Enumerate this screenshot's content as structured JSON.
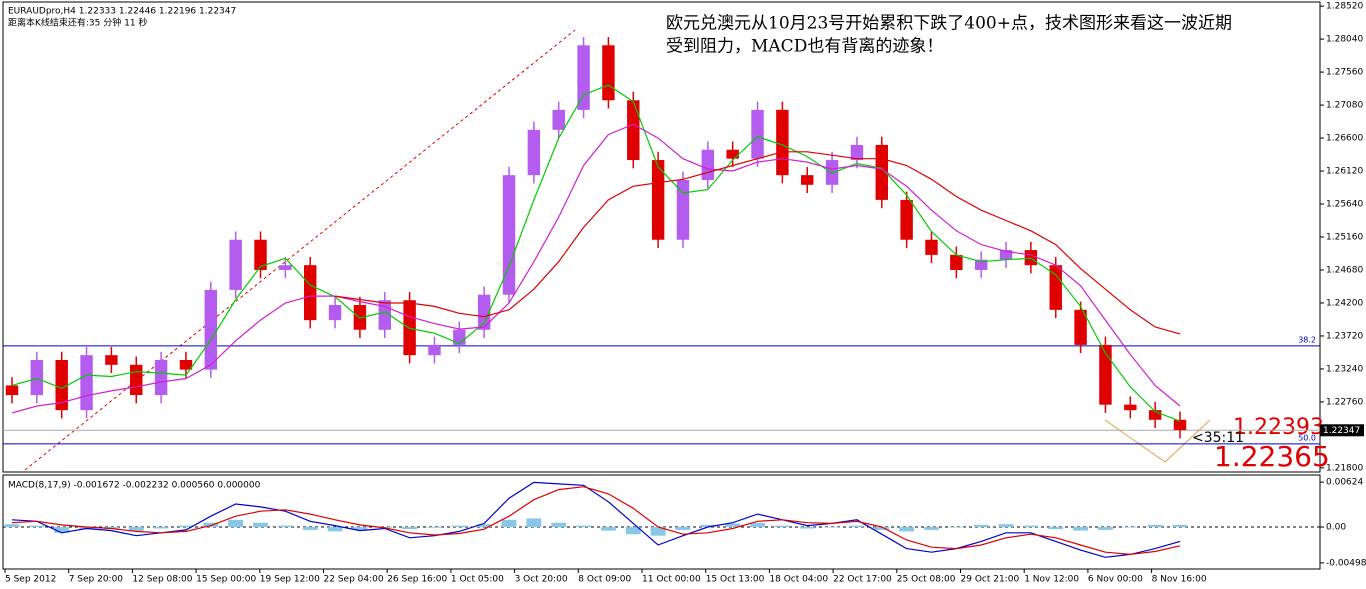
{
  "chart_data": [
    {
      "type": "candlestick",
      "header": "EURAUDpro,H4  1.22333 1.22446 1.22196 1.22347",
      "countdown": "距离本K线结束还有:35 分钟 11 秒",
      "annotation": [
        "欧元兑澳元从10月23号开始累积下跌了400+点，技术图形来看这一波近期",
        "受到阻力，MACD也有背离的迹象！"
      ],
      "up_color": "#b45cf0",
      "down_color": "#e00000",
      "candles": {
        "open": [
          1.23,
          1.2286,
          1.2337,
          1.2264,
          1.2344,
          1.233,
          1.2286,
          1.2337,
          1.2323,
          1.2439,
          1.2512,
          1.2468,
          1.2475,
          1.2395,
          1.2417,
          1.2381,
          1.2424,
          1.2344,
          1.2359,
          1.2381,
          1.2432,
          1.2606,
          1.2672,
          1.2701,
          1.2795,
          1.2715,
          1.2628,
          1.2512,
          1.2599,
          1.2643,
          1.263,
          1.2701,
          1.2606,
          1.2592,
          1.2628,
          1.265,
          1.257,
          1.2512,
          1.249,
          1.2468,
          1.2483,
          1.2497,
          1.2475,
          1.241,
          1.2359,
          1.2272,
          1.2264,
          1.225
        ],
        "high": [
          1.2312,
          1.2349,
          1.2349,
          1.2356,
          1.2356,
          1.2342,
          1.2349,
          1.2349,
          1.2451,
          1.2524,
          1.2524,
          1.2487,
          1.2487,
          1.2429,
          1.2429,
          1.2436,
          1.2436,
          1.2371,
          1.2393,
          1.2444,
          1.2618,
          1.2684,
          1.2713,
          1.2807,
          1.2807,
          1.2727,
          1.264,
          1.2611,
          1.2655,
          1.2655,
          1.2713,
          1.2713,
          1.2618,
          1.264,
          1.2662,
          1.2662,
          1.2582,
          1.2524,
          1.2502,
          1.2495,
          1.2509,
          1.2509,
          1.2487,
          1.2422,
          1.2371,
          1.2284,
          1.2276,
          1.2262
        ],
        "low": [
          1.2274,
          1.2274,
          1.2252,
          1.2252,
          1.2318,
          1.2274,
          1.2274,
          1.2311,
          1.2311,
          1.2427,
          1.2456,
          1.2456,
          1.2383,
          1.2383,
          1.2369,
          1.2369,
          1.2332,
          1.2332,
          1.2347,
          1.2369,
          1.242,
          1.2594,
          1.266,
          1.2689,
          1.2703,
          1.2616,
          1.25,
          1.25,
          1.2587,
          1.2618,
          1.2618,
          1.2594,
          1.258,
          1.258,
          1.2616,
          1.2558,
          1.25,
          1.2478,
          1.2456,
          1.2456,
          1.2471,
          1.2463,
          1.2398,
          1.2347,
          1.226,
          1.2252,
          1.2238,
          1.2223
        ],
        "close": [
          1.2286,
          1.2337,
          1.2264,
          1.2344,
          1.233,
          1.2286,
          1.2337,
          1.2323,
          1.2439,
          1.2512,
          1.2468,
          1.2475,
          1.2395,
          1.2417,
          1.2381,
          1.2424,
          1.2344,
          1.2359,
          1.2381,
          1.2432,
          1.2606,
          1.2672,
          1.2701,
          1.2795,
          1.2715,
          1.2628,
          1.2512,
          1.2599,
          1.2643,
          1.263,
          1.2701,
          1.2606,
          1.2592,
          1.2628,
          1.265,
          1.257,
          1.2512,
          1.249,
          1.2468,
          1.2483,
          1.2497,
          1.2475,
          1.241,
          1.2359,
          1.2272,
          1.2264,
          1.225,
          1.2235
        ]
      },
      "moving_averages": [
        {
          "color": "#00cc00",
          "values": [
            1.23,
            1.231,
            1.2296,
            1.2315,
            1.2313,
            1.232,
            1.2318,
            1.2315,
            1.2366,
            1.2425,
            1.2473,
            1.2485,
            1.2446,
            1.2429,
            1.2398,
            1.2407,
            1.2383,
            1.2376,
            1.2361,
            1.2391,
            1.2473,
            1.257,
            1.266,
            1.2723,
            1.2737,
            1.2713,
            1.2618,
            1.258,
            1.2585,
            1.2628,
            1.2662,
            1.265,
            1.2633,
            1.2609,
            1.2623,
            1.2616,
            1.2577,
            1.2524,
            1.249,
            1.248,
            1.2483,
            1.2485,
            1.2461,
            1.2415,
            1.2347,
            1.2298,
            1.2262,
            1.2248
          ]
        },
        {
          "color": "#d020d0",
          "values": [
            1.226,
            1.227,
            1.2275,
            1.2285,
            1.2292,
            1.2298,
            1.2305,
            1.231,
            1.233,
            1.2365,
            1.2395,
            1.242,
            1.243,
            1.243,
            1.2422,
            1.2415,
            1.24,
            1.239,
            1.2382,
            1.2385,
            1.242,
            1.248,
            1.2545,
            1.262,
            1.2665,
            1.268,
            1.266,
            1.263,
            1.2615,
            1.2612,
            1.2625,
            1.263,
            1.2625,
            1.2615,
            1.262,
            1.2615,
            1.259,
            1.2555,
            1.2525,
            1.2505,
            1.2495,
            1.249,
            1.2475,
            1.2445,
            1.2395,
            1.2345,
            1.23,
            1.227
          ]
        },
        {
          "color": "#dd0000",
          "values": [
            null,
            null,
            null,
            null,
            null,
            null,
            null,
            null,
            null,
            null,
            null,
            null,
            null,
            1.243,
            1.2425,
            1.242,
            1.242,
            1.2415,
            1.2405,
            1.24,
            1.241,
            1.244,
            1.248,
            1.253,
            1.257,
            1.259,
            1.2595,
            1.26,
            1.261,
            1.262,
            1.263,
            1.264,
            1.264,
            1.2635,
            1.263,
            1.263,
            1.262,
            1.26,
            1.2575,
            1.2555,
            1.254,
            1.2525,
            1.2505,
            1.247,
            1.244,
            1.241,
            1.2385,
            1.2375
          ]
        }
      ],
      "levels": [
        {
          "value": 1.23575,
          "label": "38.2"
        },
        {
          "value": 1.22149,
          "label": "50.0"
        }
      ],
      "level_color": "#0000cc",
      "last_price": 1.22347,
      "price_notes": [
        "1.22393",
        "1.22365",
        "<35:11"
      ],
      "ylim": [
        1.2174,
        1.2858
      ],
      "yticks": [
        {
          "value": 1.2852,
          "label": "1.28520"
        },
        {
          "value": 1.2804,
          "label": "1.28040"
        },
        {
          "value": 1.2756,
          "label": "1.27560"
        },
        {
          "value": 1.2708,
          "label": "1.27080"
        },
        {
          "value": 1.266,
          "label": "1.26600"
        },
        {
          "value": 1.2612,
          "label": "1.26120"
        },
        {
          "value": 1.2564,
          "label": "1.25640"
        },
        {
          "value": 1.2516,
          "label": "1.25160"
        },
        {
          "value": 1.2468,
          "label": "1.24680"
        },
        {
          "value": 1.242,
          "label": "1.24200"
        },
        {
          "value": 1.2372,
          "label": "1.23720"
        },
        {
          "value": 1.2324,
          "label": "1.23240"
        },
        {
          "value": 1.2276,
          "label": "1.22760"
        },
        {
          "value": 1.218,
          "label": "1.21800"
        }
      ]
    },
    {
      "type": "macd",
      "label": "MACD(8,17,9) -0.001672 -0.002232 0.000560 0.000000",
      "histogram": {
        "color": "#87c8e8",
        "values": [
          0.0004,
          0.0002,
          -0.0008,
          -0.0003,
          -0.0003,
          -0.0006,
          -0.0002,
          0.0002,
          0.0006,
          0.001,
          0.0006,
          0.0002,
          -0.0004,
          -0.0006,
          -0.0004,
          -0.0001,
          -0.0003,
          -0.0001,
          0.0002,
          0.0004,
          0.001,
          0.0012,
          0.0006,
          0.0002,
          -0.0005,
          -0.001,
          -0.0012,
          -0.0004,
          0.0003,
          0.0005,
          0.0006,
          0.0002,
          -0.0002,
          0.0,
          0.0002,
          -0.0004,
          -0.0006,
          -0.0004,
          0.0,
          0.0003,
          0.0004,
          0.0002,
          -0.0003,
          -0.0005,
          -0.0004,
          0.0,
          0.0003,
          0.0003
        ]
      },
      "series": [
        {
          "color": "#0000cc",
          "values": [
            0.001,
            0.0008,
            -0.0008,
            -0.0002,
            -0.0005,
            -0.0012,
            -0.0008,
            -0.0004,
            0.0015,
            0.0032,
            0.0028,
            0.0022,
            0.0008,
            0.0002,
            -0.0005,
            -0.0002,
            -0.0015,
            -0.0012,
            -0.0006,
            0.0005,
            0.004,
            0.0062,
            0.006,
            0.0058,
            0.0035,
            0.0005,
            -0.0025,
            -0.0012,
            0.0,
            0.0006,
            0.0018,
            0.001,
            0.0002,
            0.0005,
            0.001,
            -0.001,
            -0.003,
            -0.0035,
            -0.003,
            -0.002,
            -0.0008,
            -0.0008,
            -0.002,
            -0.0032,
            -0.0042,
            -0.0038,
            -0.003,
            -0.002
          ]
        },
        {
          "color": "#dd0000",
          "values": [
            0.0006,
            0.0008,
            0.0003,
            0.0,
            -0.0002,
            -0.0006,
            -0.0008,
            -0.0006,
            0.0002,
            0.0015,
            0.0022,
            0.0024,
            0.0018,
            0.001,
            0.0003,
            -0.0001,
            -0.0008,
            -0.0011,
            -0.0009,
            -0.0003,
            0.0015,
            0.0038,
            0.0052,
            0.0056,
            0.0046,
            0.0026,
            0.0,
            -0.001,
            -0.0008,
            -0.0002,
            0.0008,
            0.001,
            0.0006,
            0.0005,
            0.0008,
            0.0,
            -0.0018,
            -0.0028,
            -0.003,
            -0.0025,
            -0.0015,
            -0.001,
            -0.0015,
            -0.0025,
            -0.0035,
            -0.0038,
            -0.0034,
            -0.0026
          ]
        }
      ],
      "ylim": [
        -0.00583,
        0.00723
      ],
      "yticks": [
        0.00624,
        {
          "value": 0,
          "label": "0.00"
        },
        -0.00498
      ],
      "xlabels": [
        "5 Sep 2012",
        "7 Sep 20:00",
        "12 Sep 08:00",
        "15 Sep 00:00",
        "19 Sep 12:00",
        "22 Sep 04:00",
        "26 Sep 16:00",
        "1 Oct 05:00",
        "3 Oct 20:00",
        "8 Oct 09:00",
        "11 Oct 00:00",
        "15 Oct 13:00",
        "18 Oct 04:00",
        "22 Oct 17:00",
        "25 Oct 08:00",
        "29 Oct 21:00",
        "1 Nov 12:00",
        "6 Nov 00:00",
        "8 Nov 16:00"
      ]
    }
  ]
}
